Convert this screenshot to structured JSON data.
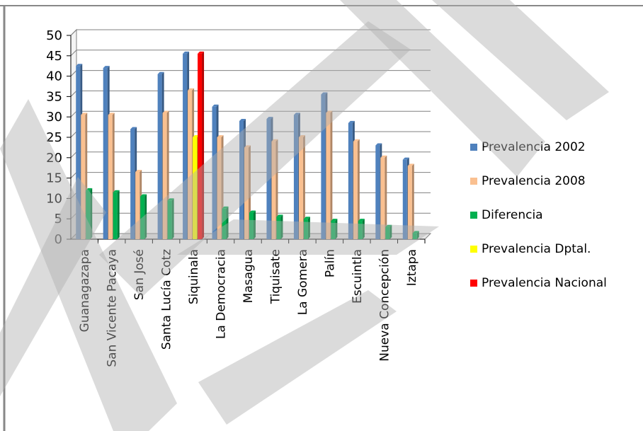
{
  "chart_data": {
    "type": "bar",
    "categories": [
      "Guanagazapa",
      "San Vicente Pacaya",
      "San José",
      "Santa Lucía Cotz",
      "Siquinala",
      "La Democracia",
      "Masagua",
      "Tiquisate",
      "La Gomera",
      "Palín",
      "Escuintla",
      "Nueva Concepción",
      "Iztapa"
    ],
    "ylim": [
      0,
      50
    ],
    "yticks": [
      0,
      5,
      10,
      15,
      20,
      25,
      30,
      35,
      40,
      45,
      50
    ],
    "grid": true,
    "legend_position": "right",
    "series": [
      {
        "name": "Prevalencia 2002",
        "color": "#4f81bd",
        "values": [
          42.5,
          42,
          27,
          40.5,
          45.5,
          32.5,
          29,
          29.5,
          30.5,
          35.5,
          28.5,
          23,
          19.5
        ]
      },
      {
        "name": "Prevalencia 2008",
        "color": "#fac090",
        "values": [
          30.5,
          30.5,
          16.5,
          31,
          36.5,
          25,
          22.5,
          24,
          25,
          31,
          24,
          20,
          18
        ]
      },
      {
        "name": "Diferencia",
        "color": "#00b050",
        "values": [
          12,
          11.5,
          10.5,
          9.5,
          9,
          7.5,
          6.5,
          5.5,
          5,
          4.5,
          4.5,
          3,
          1.5
        ]
      },
      {
        "name": "Prevalencia Dptal.",
        "color": "#ffff00",
        "values": [
          null,
          null,
          null,
          null,
          25,
          null,
          null,
          null,
          null,
          null,
          null,
          null,
          null
        ]
      },
      {
        "name": "Prevalencia Nacional",
        "color": "#ff0000",
        "values": [
          null,
          null,
          null,
          null,
          45.5,
          null,
          null,
          null,
          null,
          null,
          null,
          null,
          null
        ]
      }
    ]
  }
}
